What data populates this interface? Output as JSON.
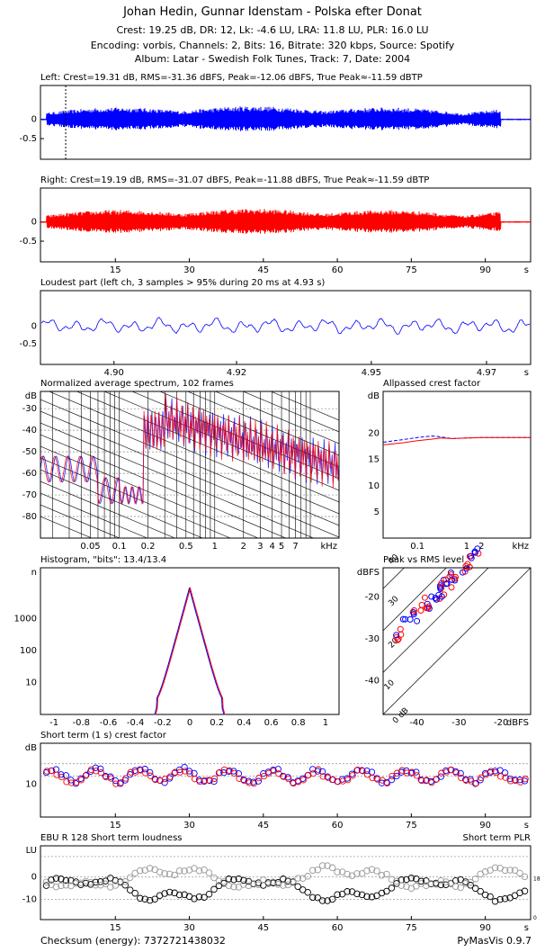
{
  "header": {
    "title": "Johan Hedin, Gunnar Idenstam - Polska efter Donat",
    "line1": "Crest: 19.25 dB,  DR: 12,  Lk: -4.6 LU,  LRA: 11.8 LU,  PLR: 16.0 LU",
    "line2": "Encoding: vorbis,  Channels: 2,  Bits: 16,  Bitrate: 320 kbps,  Source: Spotify",
    "line3": "Album: Latar - Swedish Folk Tunes,  Track: 7,  Date: 2004"
  },
  "footer": {
    "checksum": "Checksum (energy): 7372721438032",
    "version": "PyMasVis 0.9.7"
  },
  "colors": {
    "left": "#0000ff",
    "right": "#ff0000",
    "grid": "#888888",
    "ink": "#000000"
  },
  "chart_data": [
    {
      "id": "left",
      "type": "line",
      "title": "Left: Crest=19.31 dB, RMS=-31.36 dBFS, Peak=-12.06 dBFS, True Peak≈-11.59 dBTP",
      "yticks": [
        "0",
        "-0.5"
      ],
      "xticks": [],
      "xlabel": "",
      "color": "#0000ff",
      "marker_time": 4.93
    },
    {
      "id": "right",
      "type": "line",
      "title": "Right: Crest=19.19 dB, RMS=-31.07 dBFS, Peak=-11.88 dBFS, True Peak≈-11.59 dBTP",
      "yticks": [
        "0",
        "-0.5"
      ],
      "xticks": [
        "15",
        "30",
        "45",
        "60",
        "75",
        "90"
      ],
      "xlabel": "s",
      "color": "#ff0000"
    },
    {
      "id": "loudest",
      "type": "line",
      "title": "Loudest part (left ch, 3 samples > 95% during 20 ms at 4.93 s)",
      "yticks": [
        "0",
        "-0.5"
      ],
      "xticks": [
        "4.90",
        "4.92",
        "4.95",
        "4.97"
      ],
      "xlabel": "s",
      "color": "#0000ff"
    },
    {
      "id": "spectrum",
      "type": "line",
      "title": "Normalized average spectrum, 102 frames",
      "ylabel": "dB",
      "yticks": [
        "-30",
        "-40",
        "-50",
        "-60",
        "-70",
        "-80"
      ],
      "xticks": [
        "0.05",
        "0.1",
        "0.2",
        "0.5",
        "1",
        "2",
        "3",
        "4",
        "5",
        "7"
      ],
      "xlabel": "kHz"
    },
    {
      "id": "allpass",
      "type": "line",
      "title": "Allpassed crest factor",
      "ylabel": "dB",
      "yticks": [
        "20",
        "15",
        "10",
        "5"
      ],
      "xticks": [
        "0.1",
        "1",
        "2"
      ],
      "xlabel": "kHz",
      "series": [
        {
          "color": "#0000ff",
          "x": [
            0.02,
            0.05,
            0.1,
            0.2,
            0.3,
            0.5,
            1,
            2,
            5,
            20
          ],
          "y": [
            18.3,
            18.8,
            19.2,
            19.5,
            19.3,
            19.0,
            19.1,
            19.2,
            19.2,
            19.2
          ]
        },
        {
          "color": "#ff0000",
          "x": [
            0.02,
            0.05,
            0.1,
            0.2,
            0.3,
            0.5,
            1,
            2,
            5,
            20
          ],
          "y": [
            17.8,
            18.2,
            18.6,
            18.9,
            19.1,
            19.0,
            19.1,
            19.2,
            19.2,
            19.2
          ]
        }
      ]
    },
    {
      "id": "histogram",
      "type": "line",
      "title": "Histogram, \"bits\": 13.4/13.4",
      "ylabel": "n",
      "yticks": [
        "1000",
        "100",
        "10"
      ],
      "xticks": [
        "-1",
        "-0.8",
        "-0.6",
        "-0.4",
        "-0.2",
        "0",
        "0.2",
        "0.4",
        "0.6",
        "0.8",
        "1"
      ]
    },
    {
      "id": "peakrms",
      "type": "scatter",
      "title": "Peak vs RMS level",
      "ylabel": "dBFS",
      "xlabel": "dBFS",
      "yticks": [
        "-20",
        "-30",
        "-40"
      ],
      "xticks": [
        "-40",
        "-30",
        "-20"
      ],
      "diag_labels": [
        "40",
        "30",
        "20",
        "10",
        "0 dB"
      ]
    },
    {
      "id": "crest",
      "type": "scatter",
      "title": "Short term (1 s) crest factor",
      "ylabel": "dB",
      "yticks": [
        "10"
      ],
      "xticks": [
        "15",
        "30",
        "45",
        "60",
        "75",
        "90"
      ],
      "xlabel": "s"
    },
    {
      "id": "ebu",
      "type": "scatter",
      "title": "EBU R 128 Short term loudness",
      "title_right": "Short term PLR",
      "ylabel": "LU",
      "yticks": [
        "0",
        "-10"
      ],
      "xticks": [
        "15",
        "30",
        "45",
        "60",
        "75",
        "90"
      ],
      "xlabel": "s",
      "right_ticks": [
        "18",
        "0"
      ]
    }
  ]
}
